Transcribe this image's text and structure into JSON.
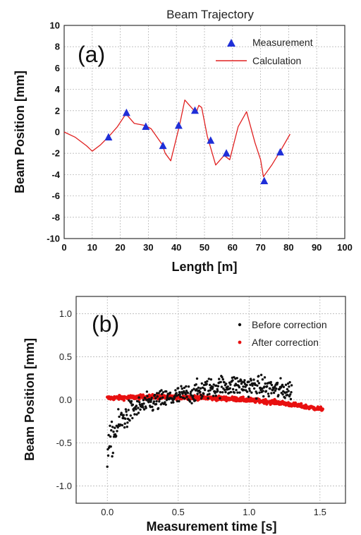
{
  "chart_data": [
    {
      "type": "line",
      "panel_label": "(a)",
      "title": "Beam Trajectory",
      "xlabel": "Length [m]",
      "ylabel": "Beam Position [mm]",
      "xlim": [
        0,
        100
      ],
      "ylim": [
        -10,
        10
      ],
      "x_ticks": [
        0,
        10,
        20,
        30,
        40,
        50,
        60,
        70,
        80,
        90,
        100
      ],
      "y_ticks": [
        -10,
        -8,
        -6,
        -4,
        -2,
        0,
        2,
        4,
        6,
        8,
        10
      ],
      "grid": true,
      "legend_position": "top-right",
      "series": [
        {
          "name": "Measurement",
          "style": "triangle-markers",
          "color": "#1f2fd8",
          "x": [
            15.8,
            22.2,
            29.1,
            35.2,
            40.8,
            46.6,
            52.2,
            57.8,
            71.3,
            77.0
          ],
          "y": [
            -0.5,
            1.8,
            0.5,
            -1.3,
            0.6,
            2.0,
            -0.8,
            -2.0,
            -4.6,
            -1.9
          ]
        },
        {
          "name": "Calculation",
          "style": "line",
          "color": "#e02020",
          "x": [
            0,
            4,
            8,
            10,
            13,
            16,
            19,
            22,
            25,
            29,
            31,
            35,
            36,
            38,
            41,
            43,
            45,
            47,
            48,
            49,
            51,
            54,
            57,
            59,
            62,
            65,
            68,
            70,
            71,
            74,
            77,
            80.5
          ],
          "y": [
            0,
            -0.5,
            -1.3,
            -1.8,
            -1.2,
            -0.4,
            0.5,
            1.7,
            0.8,
            0.6,
            0.3,
            -1.2,
            -2.0,
            -2.7,
            0.5,
            3.0,
            2.4,
            1.8,
            2.5,
            2.3,
            -0.4,
            -3.1,
            -2.2,
            -2.6,
            0.5,
            1.9,
            -1.0,
            -2.6,
            -4.2,
            -3.1,
            -1.8,
            -0.2
          ]
        }
      ]
    },
    {
      "type": "scatter",
      "panel_label": "(b)",
      "xlabel": "Measurement time [s]",
      "ylabel": "Beam Position [mm]",
      "xlim": [
        -0.22,
        1.68
      ],
      "ylim": [
        -1.2,
        1.2
      ],
      "x_ticks": [
        "0.0",
        "0.5",
        "1.0",
        "1.5"
      ],
      "y_ticks": [
        "1.0",
        "0.5",
        "0.0",
        "-0.5",
        "-1.0"
      ],
      "grid": true,
      "legend_position": "top-right",
      "series": [
        {
          "name": "Before correction",
          "color": "#111111",
          "point_count": 420,
          "x_range": [
            0.0,
            1.3
          ],
          "trend": [
            [
              0.0,
              -0.58
            ],
            [
              0.02,
              -0.52
            ],
            [
              0.05,
              -0.38
            ],
            [
              0.1,
              -0.24
            ],
            [
              0.15,
              -0.16
            ],
            [
              0.2,
              -0.1
            ],
            [
              0.3,
              -0.04
            ],
            [
              0.4,
              0.0
            ],
            [
              0.5,
              0.04
            ],
            [
              0.6,
              0.08
            ],
            [
              0.7,
              0.13
            ],
            [
              0.8,
              0.16
            ],
            [
              0.9,
              0.17
            ],
            [
              1.0,
              0.16
            ],
            [
              1.1,
              0.15
            ],
            [
              1.2,
              0.12
            ],
            [
              1.3,
              0.11
            ]
          ],
          "spread": 0.06
        },
        {
          "name": "After correction",
          "color": "#e81010",
          "point_count": 520,
          "x_range": [
            0.0,
            1.52
          ],
          "trend": [
            [
              0.0,
              0.02
            ],
            [
              0.3,
              0.035
            ],
            [
              0.6,
              0.03
            ],
            [
              0.9,
              0.01
            ],
            [
              1.2,
              -0.03
            ],
            [
              1.52,
              -0.11
            ]
          ],
          "spread": 0.012
        }
      ]
    }
  ]
}
